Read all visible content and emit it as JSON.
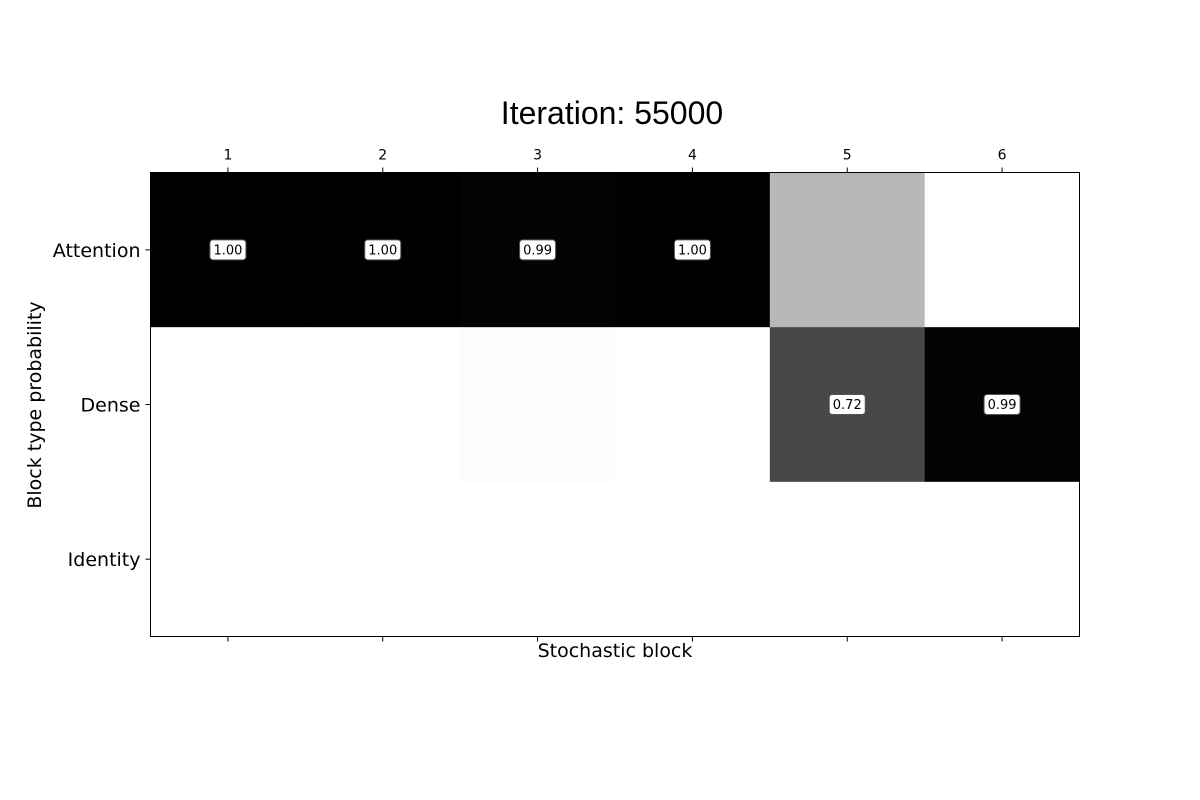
{
  "chart_data": {
    "type": "heatmap",
    "title": "Iteration: 55000",
    "xlabel": "Stochastic block",
    "ylabel": "Block type probability",
    "x_categories": [
      "1",
      "2",
      "3",
      "4",
      "5",
      "6"
    ],
    "y_categories": [
      "Attention",
      "Dense",
      "Identity"
    ],
    "values": [
      [
        1.0,
        1.0,
        0.99,
        1.0,
        0.28,
        0.0
      ],
      [
        0.0,
        0.0,
        0.01,
        0.0,
        0.72,
        0.99
      ],
      [
        0.0,
        0.0,
        0.0,
        0.0,
        0.0,
        0.0
      ]
    ],
    "cell_labels": [
      [
        "1.00",
        "1.00",
        "0.99",
        "1.00",
        "",
        ""
      ],
      [
        "",
        "",
        "",
        "",
        "0.72",
        "0.99"
      ],
      [
        "",
        "",
        "",
        "",
        "",
        ""
      ]
    ],
    "colormap": "grayscale (0 = white, 1 = black)",
    "vmin": 0,
    "vmax": 1,
    "x_ticks_position": "top",
    "grid": false
  }
}
